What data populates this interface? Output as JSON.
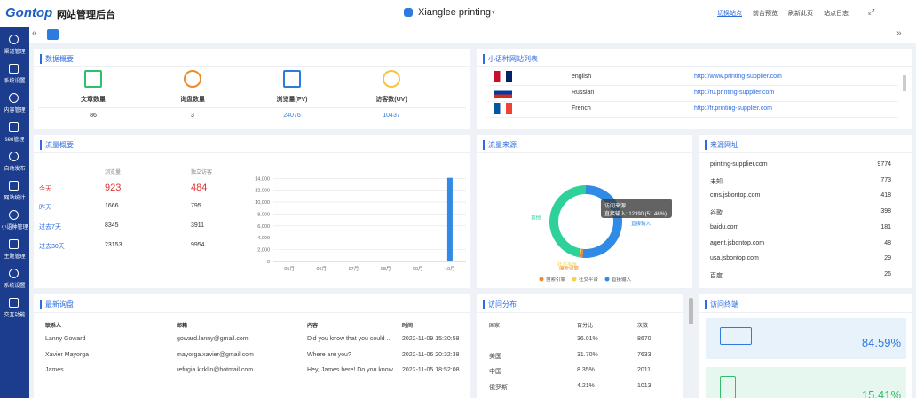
{
  "header": {
    "logo": "Gontop",
    "title": "网站管理后台",
    "site": "Xianglee printing",
    "links": [
      "切换站点",
      "前台预览",
      "刷新此页",
      "站点日志"
    ]
  },
  "sidebar": [
    "渠道管理",
    "系统设置",
    "内容管理",
    "seo管理",
    "自动发布",
    "网站统计",
    "小语种管理",
    "主题管理",
    "系统设置",
    "交互功能"
  ],
  "overview": {
    "title": "数据概要",
    "items": [
      {
        "label": "文章数量",
        "value": 86
      },
      {
        "label": "询盘数量",
        "value": 3
      },
      {
        "label": "浏览量(PV)",
        "value": 24076
      },
      {
        "label": "访客数(UV)",
        "value": 10437
      }
    ]
  },
  "languages": {
    "title": "小语种网站列表",
    "rows": [
      {
        "name": "english",
        "url": "http://www.printing-supplier.com"
      },
      {
        "name": "Russian",
        "url": "http://ru.printing-supplier.com"
      },
      {
        "name": "French",
        "url": "http://fr.printing-supplier.com"
      }
    ]
  },
  "traffic": {
    "title": "流量概要",
    "headers": [
      "浏览量",
      "独立访客"
    ],
    "rows": [
      {
        "label": "今天",
        "pv": 923,
        "uv": 484
      },
      {
        "label": "昨天",
        "pv": 1666,
        "uv": 795
      },
      {
        "label": "过去7天",
        "pv": 8345,
        "uv": 3911
      },
      {
        "label": "过去30天",
        "pv": 23153,
        "uv": 9954
      }
    ]
  },
  "chart_data": [
    {
      "type": "bar",
      "color": "#2f8be6",
      "categories": [
        "05月",
        "06月",
        "07月",
        "08月",
        "09月",
        "10月"
      ],
      "values": [
        0,
        0,
        0,
        0,
        0,
        14100
      ],
      "ylim": [
        0,
        14500
      ],
      "yticks": [
        0,
        {
          "value": 2000,
          "label": "2,000"
        },
        {
          "value": 4000,
          "label": "4,000"
        },
        {
          "value": 6000,
          "label": "6,000"
        },
        {
          "value": 8000,
          "label": "8,000"
        },
        {
          "value": 10000,
          "label": "10,000"
        },
        {
          "value": 12000,
          "label": "12,000"
        },
        {
          "value": 14000,
          "label": "14,000"
        }
      ],
      "grid": true
    },
    {
      "type": "pie",
      "title": "流量来源",
      "categories": [
        "直接输入",
        "搜索引擎",
        "社交平台",
        "其他"
      ],
      "values": [
        12390,
        250,
        80,
        11356
      ],
      "colors": [
        "#2f8be6",
        "#f0892b",
        "#f5d24a",
        "#2fd19a"
      ],
      "legend_order": [
        1,
        2,
        0
      ],
      "tooltip": {
        "title": "访问来源",
        "text": "直接输入: 12390 (51.46%)"
      }
    }
  ],
  "sources": {
    "title": "来源网址",
    "rows": [
      {
        "site": "printing-supplier.com",
        "count": 9774
      },
      {
        "site": "未知",
        "count": 773
      },
      {
        "site": "cms.jsbontop.com",
        "count": 418
      },
      {
        "site": "谷歌",
        "count": 398
      },
      {
        "site": "baidu.com",
        "count": 181
      },
      {
        "site": "agent.jsbontop.com",
        "count": 48
      },
      {
        "site": "usa.jsbontop.com",
        "count": 29
      },
      {
        "site": "百度",
        "count": 26
      }
    ]
  },
  "inquiries": {
    "title": "最新询盘",
    "headers": [
      "联系人",
      "邮箱",
      "内容",
      "时间"
    ],
    "rows": [
      [
        "Lanny Goward",
        "goward.lanny@gmail.com",
        "Did you know that you could ...",
        "2022-11-09 15:30:58"
      ],
      [
        "Xavier Mayorga",
        "mayorga.xavier@gmail.com",
        "Where are you?",
        "2022-11-06 20:32:38"
      ],
      [
        "James",
        "refugia.kirklin@hotmail.com",
        "Hey, James here! Do you know ...",
        "2022-11-05 18:52:08"
      ]
    ]
  },
  "distribution": {
    "title": "访问分布",
    "headers": [
      "国家",
      "百分比",
      "次数"
    ],
    "rows": [
      [
        null,
        "36.01%",
        8670
      ],
      [
        "美国",
        "31.70%",
        7633
      ],
      [
        "中国",
        "8.35%",
        2011
      ],
      [
        "俄罗斯",
        "4.21%",
        1013
      ]
    ]
  },
  "terminals": {
    "title": "访问终端",
    "values": [
      "84.59%",
      "15.41%"
    ]
  }
}
